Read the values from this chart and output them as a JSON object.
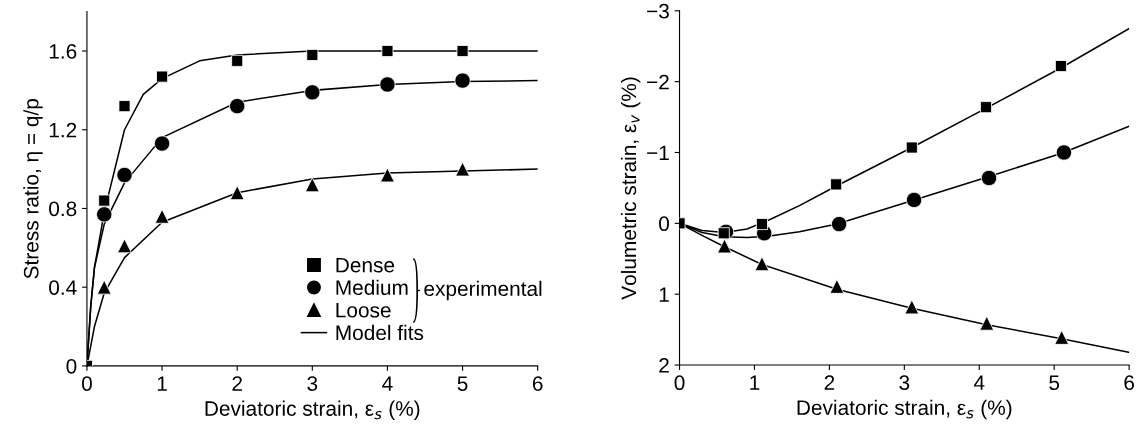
{
  "chart_data": [
    {
      "type": "scatter",
      "xlabel": "Deviatoric strain, ε$_{s}$ (%)",
      "ylabel": "Stress ratio, η = q/p",
      "xlim": [
        0,
        6
      ],
      "ylim": [
        0,
        1.8
      ],
      "xticks": [
        0,
        1,
        2,
        3,
        4,
        5,
        6
      ],
      "yticks": [
        0,
        0.4,
        0.8,
        1.2,
        1.6
      ],
      "grid": false,
      "legend": "bottom right",
      "annotations": [
        "experimental"
      ],
      "series": [
        {
          "name": "Dense",
          "marker": "square",
          "color": "#000000",
          "x": [
            0,
            0.23,
            0.5,
            1,
            2,
            3,
            4,
            5
          ],
          "values": [
            0,
            0.84,
            1.32,
            1.47,
            1.55,
            1.58,
            1.6,
            1.6
          ]
        },
        {
          "name": "Medium",
          "marker": "circle",
          "color": "#000000",
          "x": [
            0.23,
            0.5,
            1,
            2,
            3,
            4,
            5
          ],
          "values": [
            0.77,
            0.97,
            1.13,
            1.32,
            1.39,
            1.43,
            1.45
          ]
        },
        {
          "name": "Loose",
          "marker": "triangle",
          "color": "#000000",
          "x": [
            0.23,
            0.5,
            1,
            2,
            3,
            4,
            5
          ],
          "values": [
            0.4,
            0.61,
            0.76,
            0.88,
            0.92,
            0.97,
            1.0
          ]
        },
        {
          "name": "Model fits",
          "type": "line",
          "marker": "none",
          "line_style": "solid",
          "color": "#000000",
          "x": [
            0,
            0.05,
            0.1,
            0.23,
            0.5,
            0.75,
            1,
            1.5,
            2,
            3,
            4,
            6
          ],
          "values": [
            0,
            0.3,
            0.5,
            0.78,
            1.2,
            1.38,
            1.46,
            1.55,
            1.58,
            1.6,
            1.6,
            1.6
          ]
        },
        {
          "type": "line",
          "marker": "none",
          "line_style": "solid",
          "color": "#000000",
          "x": [
            0,
            0.05,
            0.1,
            0.23,
            0.5,
            1,
            2,
            3,
            4,
            5,
            6
          ],
          "values": [
            0,
            0.3,
            0.5,
            0.72,
            0.93,
            1.16,
            1.34,
            1.4,
            1.43,
            1.445,
            1.45
          ]
        },
        {
          "type": "line",
          "marker": "none",
          "line_style": "solid",
          "color": "#000000",
          "x": [
            0,
            0.1,
            0.23,
            0.5,
            1,
            2,
            3,
            4,
            5,
            6
          ],
          "values": [
            0,
            0.2,
            0.37,
            0.55,
            0.73,
            0.88,
            0.95,
            0.98,
            0.99,
            1.0
          ]
        }
      ]
    },
    {
      "type": "scatter",
      "xlabel": "Deviatoric strain, ε$_{s}$ (%)",
      "ylabel": "Volumetric strain, ε$_{v}$ (%)",
      "xlim": [
        0,
        6
      ],
      "ylim": [
        2,
        -3
      ],
      "xticks": [
        0,
        1,
        2,
        3,
        4,
        5,
        6
      ],
      "yticks": [
        {
          "value": -3,
          "label": "−3"
        },
        {
          "value": -2,
          "label": "−2"
        },
        {
          "value": -1,
          "label": "−1"
        },
        0,
        1,
        2
      ],
      "grid": false,
      "series": [
        {
          "marker": "circle",
          "color": "#000000",
          "x": [
            0.62,
            1.13,
            2.13,
            3.13,
            4.13,
            5.13
          ],
          "values": [
            0.12,
            0.14,
            0.01,
            -0.33,
            -0.64,
            -1.0
          ]
        },
        {
          "marker": "square",
          "color": "#000000",
          "x": [
            0,
            0.59,
            1.1,
            2.09,
            3.1,
            4.09,
            5.09
          ],
          "values": [
            0,
            0.14,
            0.01,
            -0.55,
            -1.07,
            -1.64,
            -2.22
          ]
        },
        {
          "marker": "triangle",
          "color": "#000000",
          "x": [
            0.6,
            1.1,
            2.1,
            3.1,
            4.1,
            5.1
          ],
          "values": [
            0.32,
            0.57,
            0.89,
            1.18,
            1.41,
            1.61
          ]
        },
        {
          "type": "line",
          "marker": "none",
          "line_style": "solid",
          "color": "#000000",
          "x": [
            0,
            0.3,
            0.6,
            0.9,
            1.2,
            1.6,
            2.1,
            3.1,
            4.1,
            5.1,
            6
          ],
          "values": [
            0,
            0.1,
            0.13,
            0.08,
            -0.05,
            -0.25,
            -0.53,
            -1.07,
            -1.63,
            -2.2,
            -2.75
          ]
        },
        {
          "type": "line",
          "marker": "none",
          "line_style": "solid",
          "color": "#000000",
          "x": [
            0,
            0.3,
            0.6,
            0.9,
            1.2,
            1.6,
            2.1,
            3.1,
            4.1,
            5.1,
            6
          ],
          "values": [
            0,
            0.13,
            0.19,
            0.2,
            0.18,
            0.12,
            0.01,
            -0.32,
            -0.65,
            -0.99,
            -1.37
          ]
        },
        {
          "type": "line",
          "marker": "none",
          "line_style": "solid",
          "color": "#000000",
          "x": [
            0,
            0.3,
            0.6,
            1.1,
            2.1,
            3.1,
            4.1,
            5.1,
            6
          ],
          "values": [
            0,
            0.17,
            0.33,
            0.58,
            0.93,
            1.2,
            1.43,
            1.63,
            1.82
          ]
        }
      ]
    }
  ]
}
